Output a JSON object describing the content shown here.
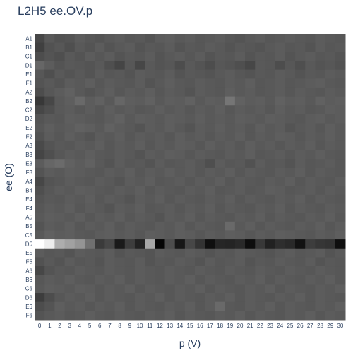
{
  "chart_data": {
    "type": "heatmap",
    "title": "L2H5 ee.OV.p",
    "xlabel": "p (V)",
    "ylabel": "ee (O)",
    "x": [
      0,
      1,
      2,
      3,
      4,
      5,
      6,
      7,
      8,
      9,
      10,
      11,
      12,
      13,
      14,
      15,
      16,
      17,
      18,
      19,
      20,
      21,
      22,
      23,
      24,
      25,
      26,
      27,
      28,
      29,
      30
    ],
    "y": [
      "A1",
      "B1",
      "C1",
      "D1",
      "E1",
      "F1",
      "A2",
      "B2",
      "C2",
      "D2",
      "E2",
      "F2",
      "A3",
      "B3",
      "E3",
      "F3",
      "A4",
      "B4",
      "E4",
      "F4",
      "A5",
      "B5",
      "C5",
      "D5",
      "E5",
      "F5",
      "A6",
      "B6",
      "C6",
      "D6",
      "E6",
      "F6"
    ],
    "colorscale": "greys",
    "values": [
      [
        0.28,
        0.35,
        0.32,
        0.33,
        0.36,
        0.34,
        0.33,
        0.35,
        0.36,
        0.34,
        0.35,
        0.33,
        0.36,
        0.37,
        0.35,
        0.36,
        0.34,
        0.35,
        0.36,
        0.34,
        0.33,
        0.35,
        0.36,
        0.34,
        0.35,
        0.36,
        0.35,
        0.34,
        0.36,
        0.35,
        0.34
      ],
      [
        0.25,
        0.32,
        0.34,
        0.31,
        0.35,
        0.33,
        0.36,
        0.33,
        0.35,
        0.36,
        0.33,
        0.35,
        0.34,
        0.36,
        0.33,
        0.35,
        0.34,
        0.36,
        0.35,
        0.33,
        0.35,
        0.34,
        0.33,
        0.35,
        0.36,
        0.34,
        0.35,
        0.33,
        0.36,
        0.34,
        0.35
      ],
      [
        0.3,
        0.33,
        0.31,
        0.35,
        0.33,
        0.36,
        0.34,
        0.36,
        0.33,
        0.35,
        0.34,
        0.36,
        0.33,
        0.35,
        0.36,
        0.34,
        0.36,
        0.33,
        0.35,
        0.34,
        0.36,
        0.33,
        0.35,
        0.34,
        0.36,
        0.33,
        0.35,
        0.36,
        0.34,
        0.35,
        0.33
      ],
      [
        0.4,
        0.36,
        0.33,
        0.35,
        0.34,
        0.33,
        0.35,
        0.31,
        0.27,
        0.34,
        0.28,
        0.35,
        0.33,
        0.34,
        0.3,
        0.35,
        0.33,
        0.3,
        0.34,
        0.33,
        0.31,
        0.28,
        0.35,
        0.34,
        0.3,
        0.34,
        0.31,
        0.35,
        0.33,
        0.34,
        0.32
      ],
      [
        0.34,
        0.31,
        0.35,
        0.33,
        0.35,
        0.33,
        0.36,
        0.34,
        0.35,
        0.33,
        0.36,
        0.35,
        0.34,
        0.36,
        0.33,
        0.35,
        0.34,
        0.33,
        0.35,
        0.36,
        0.34,
        0.33,
        0.35,
        0.34,
        0.36,
        0.35,
        0.33,
        0.35,
        0.34,
        0.36,
        0.35
      ],
      [
        0.33,
        0.35,
        0.33,
        0.36,
        0.35,
        0.37,
        0.34,
        0.36,
        0.35,
        0.34,
        0.36,
        0.33,
        0.35,
        0.37,
        0.35,
        0.34,
        0.36,
        0.35,
        0.34,
        0.36,
        0.35,
        0.37,
        0.34,
        0.35,
        0.36,
        0.34,
        0.35,
        0.36,
        0.37,
        0.35,
        0.34
      ],
      [
        0.3,
        0.34,
        0.36,
        0.38,
        0.35,
        0.33,
        0.35,
        0.37,
        0.34,
        0.36,
        0.35,
        0.37,
        0.34,
        0.36,
        0.35,
        0.33,
        0.36,
        0.35,
        0.34,
        0.37,
        0.35,
        0.36,
        0.34,
        0.35,
        0.36,
        0.34,
        0.36,
        0.35,
        0.34,
        0.36,
        0.35
      ],
      [
        0.22,
        0.28,
        0.35,
        0.37,
        0.41,
        0.36,
        0.38,
        0.35,
        0.4,
        0.37,
        0.36,
        0.38,
        0.35,
        0.37,
        0.36,
        0.38,
        0.35,
        0.37,
        0.36,
        0.46,
        0.38,
        0.36,
        0.37,
        0.35,
        0.38,
        0.36,
        0.37,
        0.35,
        0.38,
        0.36,
        0.37
      ],
      [
        0.28,
        0.31,
        0.35,
        0.36,
        0.34,
        0.36,
        0.34,
        0.37,
        0.35,
        0.36,
        0.34,
        0.35,
        0.37,
        0.35,
        0.36,
        0.34,
        0.36,
        0.35,
        0.37,
        0.34,
        0.36,
        0.35,
        0.36,
        0.34,
        0.37,
        0.35,
        0.36,
        0.34,
        0.35,
        0.37,
        0.36
      ],
      [
        0.33,
        0.35,
        0.34,
        0.37,
        0.36,
        0.35,
        0.34,
        0.36,
        0.38,
        0.35,
        0.37,
        0.36,
        0.35,
        0.37,
        0.36,
        0.35,
        0.37,
        0.35,
        0.36,
        0.35,
        0.37,
        0.36,
        0.35,
        0.37,
        0.36,
        0.35,
        0.34,
        0.36,
        0.37,
        0.35,
        0.36
      ],
      [
        0.34,
        0.37,
        0.35,
        0.36,
        0.38,
        0.37,
        0.35,
        0.38,
        0.36,
        0.35,
        0.33,
        0.36,
        0.35,
        0.37,
        0.35,
        0.33,
        0.36,
        0.35,
        0.37,
        0.35,
        0.36,
        0.34,
        0.37,
        0.35,
        0.36,
        0.33,
        0.35,
        0.36,
        0.34,
        0.37,
        0.35
      ],
      [
        0.32,
        0.36,
        0.34,
        0.37,
        0.35,
        0.33,
        0.36,
        0.35,
        0.37,
        0.34,
        0.36,
        0.35,
        0.36,
        0.34,
        0.37,
        0.35,
        0.36,
        0.34,
        0.36,
        0.35,
        0.37,
        0.34,
        0.36,
        0.35,
        0.37,
        0.36,
        0.34,
        0.36,
        0.35,
        0.37,
        0.35
      ],
      [
        0.29,
        0.33,
        0.35,
        0.34,
        0.36,
        0.35,
        0.37,
        0.34,
        0.36,
        0.35,
        0.37,
        0.34,
        0.36,
        0.35,
        0.37,
        0.36,
        0.34,
        0.37,
        0.35,
        0.36,
        0.34,
        0.37,
        0.35,
        0.36,
        0.34,
        0.36,
        0.35,
        0.37,
        0.34,
        0.36,
        0.35
      ],
      [
        0.27,
        0.31,
        0.34,
        0.36,
        0.35,
        0.37,
        0.35,
        0.34,
        0.36,
        0.35,
        0.33,
        0.36,
        0.35,
        0.37,
        0.36,
        0.34,
        0.36,
        0.35,
        0.34,
        0.36,
        0.35,
        0.37,
        0.34,
        0.35,
        0.36,
        0.34,
        0.36,
        0.35,
        0.37,
        0.35,
        0.34
      ],
      [
        0.36,
        0.4,
        0.42,
        0.38,
        0.36,
        0.38,
        0.35,
        0.33,
        0.36,
        0.34,
        0.35,
        0.33,
        0.36,
        0.34,
        0.35,
        0.36,
        0.34,
        0.31,
        0.36,
        0.34,
        0.35,
        0.32,
        0.36,
        0.34,
        0.35,
        0.33,
        0.36,
        0.34,
        0.35,
        0.36,
        0.34
      ],
      [
        0.33,
        0.36,
        0.35,
        0.37,
        0.36,
        0.35,
        0.34,
        0.36,
        0.35,
        0.37,
        0.34,
        0.36,
        0.35,
        0.37,
        0.35,
        0.36,
        0.34,
        0.36,
        0.35,
        0.37,
        0.34,
        0.36,
        0.35,
        0.34,
        0.36,
        0.35,
        0.37,
        0.34,
        0.36,
        0.35,
        0.34
      ],
      [
        0.28,
        0.33,
        0.34,
        0.36,
        0.35,
        0.34,
        0.36,
        0.35,
        0.33,
        0.36,
        0.35,
        0.37,
        0.34,
        0.35,
        0.36,
        0.34,
        0.36,
        0.35,
        0.37,
        0.34,
        0.36,
        0.35,
        0.34,
        0.36,
        0.35,
        0.37,
        0.34,
        0.36,
        0.35,
        0.34,
        0.36
      ],
      [
        0.31,
        0.34,
        0.36,
        0.35,
        0.37,
        0.36,
        0.35,
        0.34,
        0.36,
        0.35,
        0.37,
        0.34,
        0.36,
        0.35,
        0.34,
        0.36,
        0.35,
        0.37,
        0.34,
        0.35,
        0.36,
        0.34,
        0.35,
        0.37,
        0.36,
        0.34,
        0.35,
        0.36,
        0.34,
        0.36,
        0.35
      ],
      [
        0.33,
        0.35,
        0.34,
        0.36,
        0.35,
        0.37,
        0.34,
        0.36,
        0.35,
        0.33,
        0.36,
        0.35,
        0.37,
        0.34,
        0.36,
        0.35,
        0.34,
        0.36,
        0.35,
        0.37,
        0.34,
        0.36,
        0.35,
        0.34,
        0.36,
        0.35,
        0.37,
        0.34,
        0.36,
        0.35,
        0.34
      ],
      [
        0.34,
        0.36,
        0.35,
        0.37,
        0.34,
        0.36,
        0.35,
        0.33,
        0.36,
        0.35,
        0.37,
        0.34,
        0.35,
        0.36,
        0.34,
        0.36,
        0.35,
        0.37,
        0.34,
        0.36,
        0.35,
        0.34,
        0.36,
        0.35,
        0.37,
        0.34,
        0.36,
        0.35,
        0.34,
        0.36,
        0.35
      ],
      [
        0.35,
        0.37,
        0.36,
        0.35,
        0.37,
        0.34,
        0.36,
        0.35,
        0.37,
        0.34,
        0.36,
        0.35,
        0.33,
        0.36,
        0.35,
        0.37,
        0.34,
        0.36,
        0.35,
        0.34,
        0.36,
        0.35,
        0.37,
        0.34,
        0.36,
        0.35,
        0.34,
        0.36,
        0.35,
        0.37,
        0.34
      ],
      [
        0.33,
        0.36,
        0.35,
        0.37,
        0.34,
        0.36,
        0.35,
        0.37,
        0.34,
        0.36,
        0.35,
        0.34,
        0.36,
        0.35,
        0.37,
        0.34,
        0.36,
        0.35,
        0.34,
        0.41,
        0.35,
        0.37,
        0.34,
        0.36,
        0.35,
        0.34,
        0.36,
        0.35,
        0.37,
        0.34,
        0.36
      ],
      [
        0.35,
        0.38,
        0.36,
        0.37,
        0.35,
        0.34,
        0.36,
        0.37,
        0.35,
        0.36,
        0.34,
        0.37,
        0.36,
        0.35,
        0.37,
        0.36,
        0.34,
        0.36,
        0.35,
        0.37,
        0.36,
        0.34,
        0.36,
        0.35,
        0.37,
        0.36,
        0.35,
        0.34,
        0.36,
        0.35,
        0.37
      ],
      [
        1.0,
        0.93,
        0.68,
        0.63,
        0.58,
        0.44,
        0.23,
        0.28,
        0.1,
        0.24,
        0.13,
        0.65,
        0.02,
        0.3,
        0.09,
        0.28,
        0.2,
        0.06,
        0.15,
        0.14,
        0.16,
        0.05,
        0.22,
        0.13,
        0.18,
        0.16,
        0.07,
        0.24,
        0.21,
        0.2,
        0.06
      ],
      [
        0.36,
        0.34,
        0.35,
        0.33,
        0.36,
        0.35,
        0.34,
        0.36,
        0.33,
        0.35,
        0.34,
        0.33,
        0.36,
        0.35,
        0.34,
        0.36,
        0.35,
        0.33,
        0.35,
        0.34,
        0.36,
        0.35,
        0.34,
        0.33,
        0.35,
        0.36,
        0.34,
        0.35,
        0.36,
        0.33,
        0.35
      ],
      [
        0.32,
        0.35,
        0.33,
        0.36,
        0.34,
        0.35,
        0.33,
        0.36,
        0.35,
        0.34,
        0.36,
        0.33,
        0.35,
        0.34,
        0.36,
        0.35,
        0.33,
        0.36,
        0.34,
        0.35,
        0.36,
        0.33,
        0.35,
        0.34,
        0.36,
        0.35,
        0.34,
        0.36,
        0.33,
        0.35,
        0.34
      ],
      [
        0.28,
        0.33,
        0.35,
        0.34,
        0.36,
        0.35,
        0.34,
        0.36,
        0.35,
        0.34,
        0.36,
        0.35,
        0.34,
        0.36,
        0.35,
        0.34,
        0.36,
        0.35,
        0.34,
        0.36,
        0.35,
        0.34,
        0.36,
        0.35,
        0.34,
        0.36,
        0.35,
        0.34,
        0.36,
        0.35,
        0.34
      ],
      [
        0.34,
        0.36,
        0.35,
        0.37,
        0.35,
        0.34,
        0.36,
        0.35,
        0.37,
        0.34,
        0.36,
        0.35,
        0.34,
        0.36,
        0.35,
        0.37,
        0.34,
        0.36,
        0.35,
        0.34,
        0.36,
        0.35,
        0.37,
        0.34,
        0.36,
        0.35,
        0.34,
        0.36,
        0.35,
        0.37,
        0.34
      ],
      [
        0.35,
        0.37,
        0.36,
        0.35,
        0.37,
        0.36,
        0.34,
        0.36,
        0.35,
        0.37,
        0.34,
        0.36,
        0.35,
        0.34,
        0.36,
        0.35,
        0.37,
        0.34,
        0.36,
        0.35,
        0.34,
        0.36,
        0.35,
        0.37,
        0.34,
        0.36,
        0.35,
        0.34,
        0.36,
        0.35,
        0.37
      ],
      [
        0.24,
        0.3,
        0.34,
        0.36,
        0.35,
        0.37,
        0.34,
        0.36,
        0.35,
        0.34,
        0.36,
        0.35,
        0.37,
        0.34,
        0.36,
        0.35,
        0.34,
        0.36,
        0.35,
        0.37,
        0.34,
        0.36,
        0.35,
        0.34,
        0.36,
        0.35,
        0.37,
        0.34,
        0.36,
        0.35,
        0.34
      ],
      [
        0.3,
        0.33,
        0.37,
        0.35,
        0.36,
        0.34,
        0.36,
        0.35,
        0.37,
        0.34,
        0.36,
        0.35,
        0.34,
        0.36,
        0.35,
        0.37,
        0.34,
        0.36,
        0.41,
        0.35,
        0.34,
        0.36,
        0.35,
        0.37,
        0.34,
        0.36,
        0.35,
        0.34,
        0.36,
        0.35,
        0.37
      ],
      [
        0.33,
        0.35,
        0.36,
        0.34,
        0.35,
        0.37,
        0.35,
        0.34,
        0.36,
        0.35,
        0.34,
        0.36,
        0.35,
        0.37,
        0.34,
        0.36,
        0.35,
        0.34,
        0.36,
        0.35,
        0.37,
        0.34,
        0.36,
        0.35,
        0.34,
        0.36,
        0.35,
        0.37,
        0.34,
        0.36,
        0.35
      ]
    ]
  }
}
